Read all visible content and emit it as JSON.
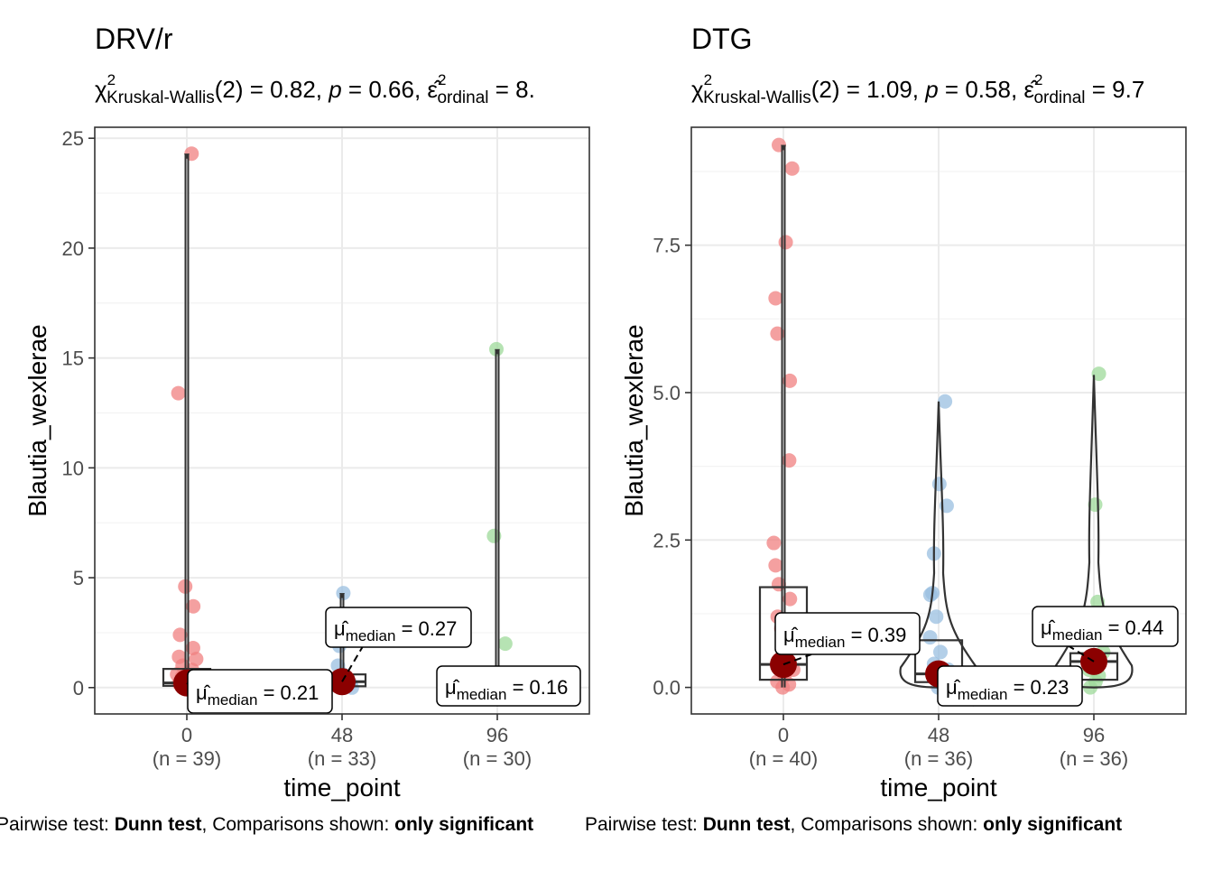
{
  "chart_data": [
    {
      "type": "violin-box-scatter",
      "title": "DRV/r",
      "subtitle": {
        "stat_symbol": "χ",
        "stat_sup": "2",
        "stat_sub": "Kruskal-Wallis",
        "df": "(2) = 0.82, ",
        "p_label": "p",
        "p_value": " = 0.66, ",
        "effect_symbol": "ε̂",
        "effect_sup": "2",
        "effect_sub": "ordinal",
        "effect_value": " = 8."
      },
      "xlabel": "time_point",
      "ylabel": "Blautia_wexlerae",
      "ylim": [
        -1.2,
        25.5
      ],
      "yticks": [
        0,
        5,
        10,
        15,
        20,
        25
      ],
      "ytick_labels": [
        "0",
        "5",
        "10",
        "15",
        "20",
        "25"
      ],
      "grid": true,
      "categories": [
        "0",
        "48",
        "96"
      ],
      "n_labels": [
        "(n = 39)",
        "(n = 33)",
        "(n = 30)"
      ],
      "colors": [
        "#F08080",
        "#9ABFE0",
        "#9ED99A"
      ],
      "points": [
        [
          24.3,
          13.4,
          4.6,
          3.7,
          2.4,
          1.8,
          1.4,
          1.3,
          1.0,
          0.8,
          0.6,
          0.5,
          0.4,
          0.3,
          0.2,
          0.15,
          0.1,
          0.05,
          0.0
        ],
        [
          4.3,
          1.9,
          1.0,
          0.6,
          0.4,
          0.3,
          0.2,
          0.1,
          0.05,
          0.0
        ],
        [
          15.4,
          6.9,
          2.0,
          0.3,
          0.1,
          0.0
        ]
      ],
      "box": [
        {
          "q1": 0.08,
          "median": 0.21,
          "q3": 0.85
        },
        {
          "q1": 0.06,
          "median": 0.27,
          "q3": 0.6
        },
        {
          "q1": 0.03,
          "median": 0.16,
          "q3": 0.4
        }
      ],
      "violin_max": [
        24.3,
        4.3,
        15.4
      ],
      "median_labels": [
        {
          "mu": "μ̂",
          "sub": "median",
          "value": " = 0.21"
        },
        {
          "mu": "μ̂",
          "sub": "median",
          "value": " = 0.27"
        },
        {
          "mu": "μ̂",
          "sub": "median",
          "value": " = 0.16"
        }
      ],
      "caption": {
        "prefix": "Pairwise test: ",
        "test": "Dunn test",
        "middle": ", Comparisons shown: ",
        "shown": "only significant"
      }
    },
    {
      "type": "violin-box-scatter",
      "title": "DTG",
      "subtitle": {
        "stat_symbol": "χ",
        "stat_sup": "2",
        "stat_sub": "Kruskal-Wallis",
        "df": "(2) = 1.09, ",
        "p_label": "p",
        "p_value": " = 0.58, ",
        "effect_symbol": "ε̂",
        "effect_sup": "2",
        "effect_sub": "ordinal",
        "effect_value": " = 9.7"
      },
      "xlabel": "time_point",
      "ylabel": "Blautia_wexlerae",
      "ylim": [
        -0.45,
        9.5
      ],
      "yticks": [
        0,
        2.5,
        5,
        7.5
      ],
      "ytick_labels": [
        "0.0",
        "2.5",
        "5.0",
        "7.5"
      ],
      "grid": true,
      "categories": [
        "0",
        "48",
        "96"
      ],
      "n_labels": [
        "(n = 40)",
        "(n = 36)",
        "(n = 36)"
      ],
      "colors": [
        "#F08080",
        "#9ABFE0",
        "#9ED99A"
      ],
      "points": [
        [
          9.2,
          8.8,
          7.55,
          6.6,
          6.0,
          5.2,
          3.85,
          2.45,
          2.07,
          1.75,
          1.5,
          1.2,
          1.0,
          0.8,
          0.6,
          0.4,
          0.3,
          0.2,
          0.1,
          0.05,
          0.0
        ],
        [
          4.85,
          3.45,
          3.08,
          2.27,
          1.6,
          1.57,
          1.2,
          0.85,
          0.6,
          0.4,
          0.3,
          0.2,
          0.1,
          0.0
        ],
        [
          5.32,
          3.1,
          1.45,
          0.6,
          0.4,
          0.3,
          0.2,
          0.1,
          0.0
        ]
      ],
      "box": [
        {
          "q1": 0.13,
          "median": 0.39,
          "q3": 1.7
        },
        {
          "q1": 0.09,
          "median": 0.23,
          "q3": 0.8
        },
        {
          "q1": 0.13,
          "median": 0.44,
          "q3": 0.58
        }
      ],
      "violin_max": [
        9.2,
        4.85,
        5.3
      ],
      "median_labels": [
        {
          "mu": "μ̂",
          "sub": "median",
          "value": " = 0.39"
        },
        {
          "mu": "μ̂",
          "sub": "median",
          "value": " = 0.23"
        },
        {
          "mu": "μ̂",
          "sub": "median",
          "value": " = 0.44"
        }
      ],
      "caption": {
        "prefix": "Pairwise test: ",
        "test": "Dunn test",
        "middle": ", Comparisons shown: ",
        "shown": "only significant"
      }
    }
  ]
}
